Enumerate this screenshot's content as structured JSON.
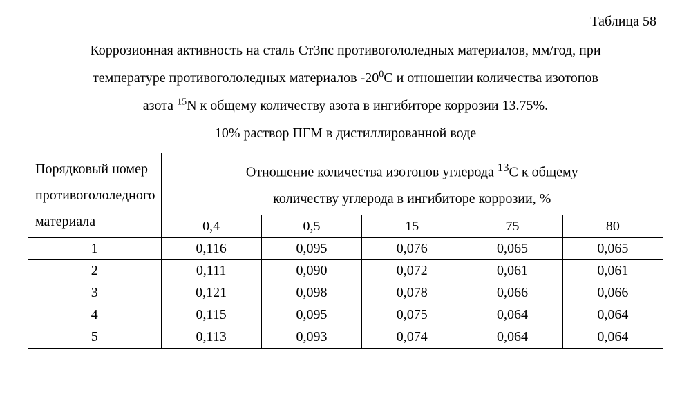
{
  "table_label": "Таблица 58",
  "caption": {
    "line1_a": "Коррозионная активность на сталь Ст3пс противогололедных материалов, мм/год, при",
    "line2_a": "температуре противогололедных материалов -20",
    "line2_sup": "0",
    "line2_b": "С и отношении количества изотопов",
    "line3_a": "азота ",
    "line3_sup": "15",
    "line3_b": "N  к общему количеству азота в ингибиторе коррозии 13.75%.",
    "line4": "10% раствор ПГМ в дистиллированной воде"
  },
  "table": {
    "header_left_l1": "Порядковый номер",
    "header_left_l2": "противогололедного",
    "header_left_l3": "материала",
    "header_top_a": "Отношение количества изотопов углерода ",
    "header_top_sup": "13",
    "header_top_b": "С к общему",
    "header_top_c": "количеству углерода в ингибиторе коррозии, %",
    "columns": [
      "0,4",
      "0,5",
      "15",
      "75",
      "80"
    ],
    "rows": [
      {
        "n": "1",
        "vals": [
          "0,116",
          "0,095",
          "0,076",
          "0,065",
          "0,065"
        ]
      },
      {
        "n": "2",
        "vals": [
          "0,111",
          "0,090",
          "0,072",
          "0,061",
          "0,061"
        ]
      },
      {
        "n": "3",
        "vals": [
          "0,121",
          "0,098",
          "0,078",
          "0,066",
          "0,066"
        ]
      },
      {
        "n": "4",
        "vals": [
          "0,115",
          "0,095",
          "0,075",
          "0,064",
          "0,064"
        ]
      },
      {
        "n": "5",
        "vals": [
          "0,113",
          "0,093",
          "0,074",
          "0,064",
          "0,064"
        ]
      }
    ]
  }
}
